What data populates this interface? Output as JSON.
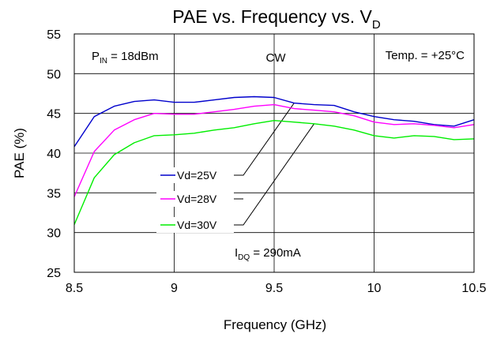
{
  "chart_data": {
    "type": "line",
    "title": {
      "main": "PAE vs. Frequency vs. V",
      "sub": "D"
    },
    "xlabel": "Frequency (GHz)",
    "ylabel": "PAE (%)",
    "xlim": [
      8.5,
      10.5
    ],
    "ylim": [
      25,
      55
    ],
    "xticks": [
      8.5,
      9,
      9.5,
      10,
      10.5
    ],
    "xtick_labels": [
      "8.5",
      "9",
      "9.5",
      "10",
      "10.5"
    ],
    "yticks": [
      25,
      30,
      35,
      40,
      45,
      50,
      55
    ],
    "ytick_labels": [
      "25",
      "30",
      "35",
      "40",
      "45",
      "50",
      "55"
    ],
    "grid": true,
    "x": [
      8.5,
      8.6,
      8.7,
      8.8,
      8.9,
      9.0,
      9.1,
      9.2,
      9.3,
      9.4,
      9.5,
      9.6,
      9.7,
      9.8,
      9.9,
      10.0,
      10.1,
      10.2,
      10.3,
      10.4,
      10.5
    ],
    "series": [
      {
        "name": "Vd=25V",
        "color": "#0000cc",
        "values": [
          40.8,
          44.6,
          45.9,
          46.5,
          46.7,
          46.4,
          46.4,
          46.7,
          47.0,
          47.1,
          47.0,
          46.3,
          46.1,
          46.0,
          45.2,
          44.6,
          44.2,
          44.0,
          43.6,
          43.4,
          44.2
        ]
      },
      {
        "name": "Vd=28V",
        "color": "#ff00ff",
        "values": [
          34.5,
          40.2,
          42.9,
          44.2,
          45.0,
          44.9,
          44.9,
          45.2,
          45.5,
          45.9,
          46.1,
          45.6,
          45.4,
          45.2,
          44.7,
          43.9,
          43.6,
          43.7,
          43.5,
          43.2,
          43.6
        ]
      },
      {
        "name": "Vd=30V",
        "color": "#00ee00",
        "values": [
          31.0,
          36.9,
          39.8,
          41.3,
          42.2,
          42.3,
          42.5,
          42.9,
          43.2,
          43.7,
          44.1,
          43.9,
          43.7,
          43.4,
          42.9,
          42.2,
          41.9,
          42.2,
          42.1,
          41.7,
          41.8
        ]
      }
    ],
    "annotations": {
      "pin": {
        "main": "P",
        "sub": "IN",
        "rest": " = 18dBm"
      },
      "mode": "CW",
      "temp": "Temp. = +25°C",
      "idq": {
        "main": "I",
        "sub": "DQ",
        "rest": " = 290mA"
      }
    }
  }
}
